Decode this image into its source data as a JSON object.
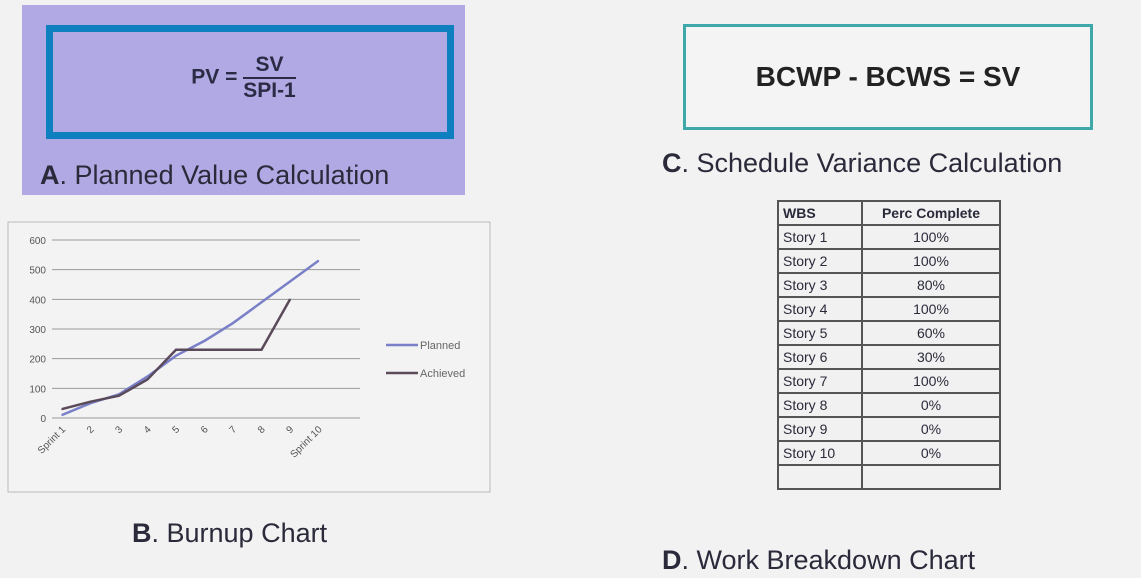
{
  "option_a": {
    "letter": "A",
    "caption": ". Planned Value Calculation",
    "formula_lhs": "PV =",
    "formula_numerator": "SV",
    "formula_denominator": "SPI-1",
    "colors": {
      "background": "#b1a9e3",
      "frame": "#0f80bf"
    }
  },
  "option_b": {
    "letter": "B",
    "caption": ". Burnup Chart"
  },
  "option_c": {
    "letter": "C",
    "caption": ". Schedule Variance Calculation",
    "formula": "BCWP - BCWS = SV",
    "colors": {
      "frame": "#3fa8a8"
    }
  },
  "option_d": {
    "letter": "D",
    "caption": ". Work Breakdown Chart",
    "headers": [
      "WBS",
      "Perc Complete"
    ],
    "rows": [
      [
        "Story 1",
        "100%"
      ],
      [
        "Story 2",
        "100%"
      ],
      [
        "Story 3",
        "80%"
      ],
      [
        "Story 4",
        "100%"
      ],
      [
        "Story 5",
        "60%"
      ],
      [
        "Story 6",
        "30%"
      ],
      [
        "Story 7",
        "100%"
      ],
      [
        "Story 8",
        "0%"
      ],
      [
        "Story 9",
        "0%"
      ],
      [
        "Story 10",
        "0%"
      ],
      [
        "",
        ""
      ]
    ]
  },
  "chart_data": {
    "type": "line",
    "categories": [
      "Sprint 1",
      "2",
      "3",
      "4",
      "5",
      "6",
      "7",
      "8",
      "9",
      "Sprint 10"
    ],
    "ylim": [
      0,
      600
    ],
    "yticks": [
      "0",
      "100",
      "200",
      "300",
      "400",
      "500",
      "600"
    ],
    "grid": true,
    "legend_placement": "right",
    "series": [
      {
        "name": "Planned",
        "color": "#7a80c8",
        "values": [
          10,
          50,
          80,
          140,
          210,
          260,
          320,
          390,
          460,
          530
        ]
      },
      {
        "name": "Achieved",
        "color": "#5a4a5a",
        "values": [
          30,
          55,
          75,
          130,
          230,
          230,
          230,
          230,
          400,
          null
        ]
      }
    ]
  }
}
